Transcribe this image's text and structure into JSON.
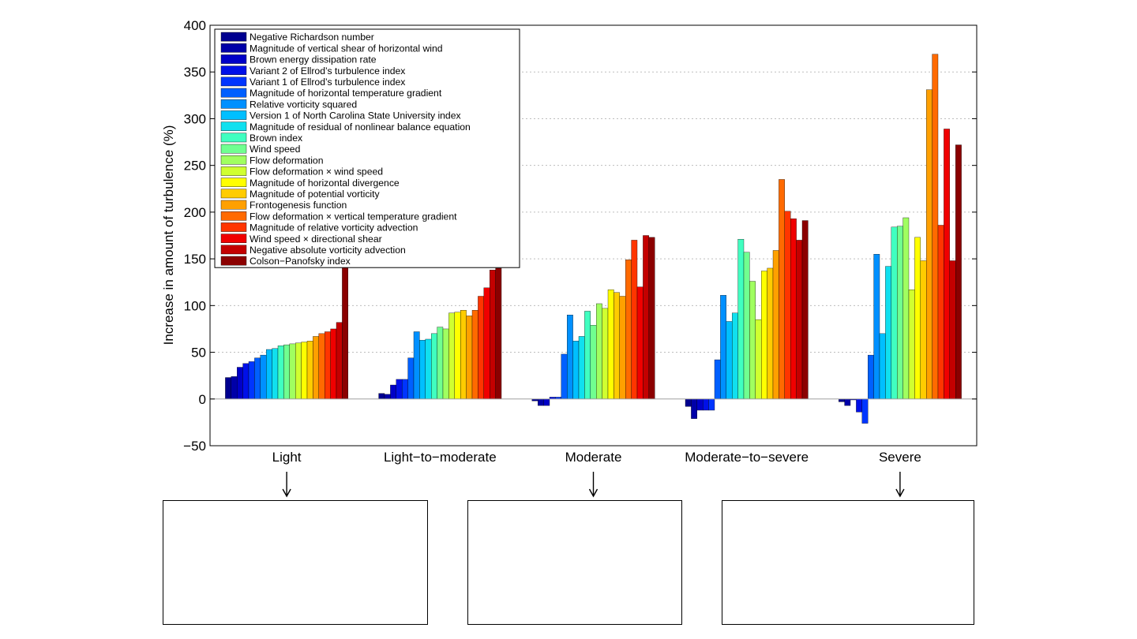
{
  "chart_data": {
    "type": "bar",
    "ylabel": "Increase in amount of turbulence (%)",
    "ylim": [
      -50,
      400
    ],
    "yticks": [
      -50,
      0,
      50,
      100,
      150,
      200,
      250,
      300,
      350,
      400
    ],
    "grid": "horizontal dotted",
    "legend_position": "top-left",
    "categories": [
      "Light",
      "Light−to−moderate",
      "Moderate",
      "Moderate−to−severe",
      "Severe"
    ],
    "series": [
      {
        "name": "Negative Richardson number",
        "color": "#00008f",
        "values": [
          23,
          6,
          -2,
          -8,
          -3
        ]
      },
      {
        "name": "Magnitude of vertical shear of horizontal wind",
        "color": "#0000a8",
        "values": [
          24,
          5,
          -7,
          -21,
          -7
        ]
      },
      {
        "name": "Brown energy dissipation rate",
        "color": "#0000c8",
        "values": [
          34,
          15,
          -7,
          -12,
          -1
        ]
      },
      {
        "name": "Variant 2 of Ellrod’s turbulence index",
        "color": "#0010e8",
        "values": [
          38,
          21,
          2,
          -12,
          -14
        ]
      },
      {
        "name": "Variant 1 of Ellrod’s turbulence index",
        "color": "#0035ff",
        "values": [
          40,
          21,
          2,
          -12,
          -26
        ]
      },
      {
        "name": "Magnitude of horizontal temperature gradient",
        "color": "#0060ff",
        "values": [
          44,
          44,
          48,
          42,
          47
        ]
      },
      {
        "name": "Relative vorticity squared",
        "color": "#0090ff",
        "values": [
          47,
          72,
          90,
          111,
          155
        ]
      },
      {
        "name": "Version 1 of North Carolina State University index",
        "color": "#00bfff",
        "values": [
          53,
          63,
          62,
          83,
          70
        ]
      },
      {
        "name": "Magnitude of residual of nonlinear balance equation",
        "color": "#10e0ef",
        "values": [
          54,
          64,
          67,
          92,
          142
        ]
      },
      {
        "name": "Brown index",
        "color": "#40ffc0",
        "values": [
          57,
          70,
          94,
          171,
          184
        ]
      },
      {
        "name": "Wind speed",
        "color": "#70ff90",
        "values": [
          58,
          77,
          79,
          157,
          185
        ]
      },
      {
        "name": "Flow deformation",
        "color": "#a0ff60",
        "values": [
          59,
          75,
          102,
          126,
          194
        ]
      },
      {
        "name": "Flow deformation × wind speed",
        "color": "#d0ff30",
        "values": [
          60,
          92,
          97,
          85,
          117
        ]
      },
      {
        "name": "Magnitude of horizontal divergence",
        "color": "#ffff00",
        "values": [
          61,
          93,
          117,
          137,
          173
        ]
      },
      {
        "name": "Magnitude of potential vorticity",
        "color": "#ffcc00",
        "values": [
          62,
          95,
          114,
          140,
          148
        ]
      },
      {
        "name": "Frontogenesis function",
        "color": "#ffa000",
        "values": [
          67,
          89,
          110,
          159,
          331
        ]
      },
      {
        "name": "Flow deformation × vertical temperature gradient",
        "color": "#ff6a00",
        "values": [
          70,
          95,
          149,
          235,
          369
        ]
      },
      {
        "name": "Magnitude of relative vorticity advection",
        "color": "#ff3500",
        "values": [
          72,
          110,
          170,
          201,
          186
        ]
      },
      {
        "name": "Wind speed × directional shear",
        "color": "#f00000",
        "values": [
          75,
          119,
          120,
          193,
          289
        ]
      },
      {
        "name": "Negative absolute vorticity advection",
        "color": "#c40000",
        "values": [
          82,
          138,
          175,
          170,
          148
        ]
      },
      {
        "name": "Colson−Panofsky index",
        "color": "#8b0000",
        "values": [
          141,
          140,
          173,
          191,
          272
        ]
      }
    ]
  },
  "answer_boxes": [
    {
      "points_to": "Light"
    },
    {
      "points_to": "Moderate"
    },
    {
      "points_to": "Severe"
    }
  ]
}
